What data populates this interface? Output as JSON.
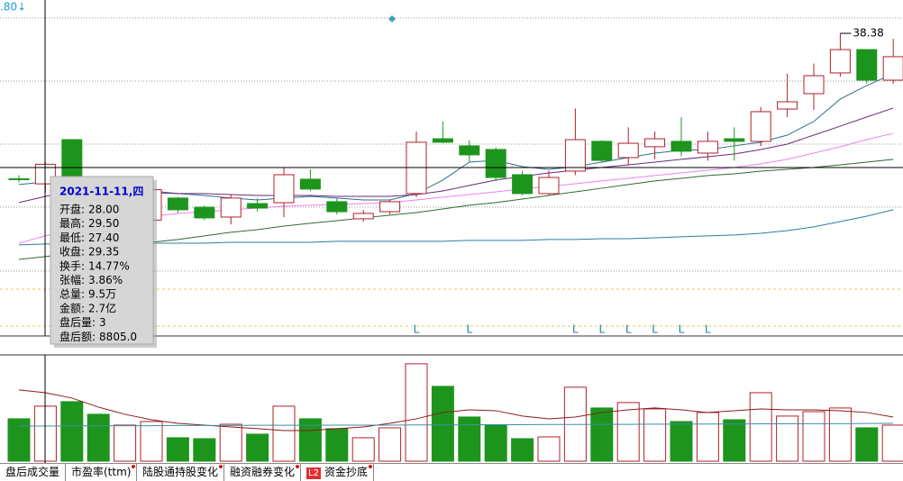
{
  "corner_label": ".80↓",
  "chart_data": [
    {
      "type": "candlestick",
      "categories": [
        null,
        null,
        null,
        null,
        null,
        null,
        null,
        null,
        null,
        null,
        null,
        null,
        null,
        null,
        null,
        null,
        null,
        null,
        null,
        null,
        null,
        null,
        null,
        null,
        null,
        null,
        null,
        null,
        null,
        null,
        null,
        null,
        null,
        null
      ],
      "open": [
        28.35,
        28.0,
        31.05,
        28.3,
        27.2,
        25.5,
        27.02,
        26.39,
        25.71,
        26.64,
        26.7,
        28.32,
        26.77,
        25.59,
        26.08,
        27.33,
        31.11,
        30.62,
        30.37,
        28.63,
        27.33,
        28.88,
        30.93,
        29.81,
        30.56,
        30.93,
        30.12,
        31.11,
        30.93,
        33.16,
        34.22,
        35.65,
        37.26,
        35.15
      ],
      "high": [
        28.6,
        29.5,
        31.1,
        28.5,
        28.1,
        27.8,
        27.1,
        26.5,
        27.3,
        27.0,
        29.1,
        29.0,
        27.0,
        26.2,
        26.9,
        31.6,
        32.3,
        31.0,
        30.5,
        28.9,
        28.9,
        33.2,
        31.0,
        31.9,
        31.6,
        32.6,
        31.6,
        31.9,
        33.3,
        35.6,
        36.3,
        38.38,
        37.3,
        38.0
      ],
      "low": [
        28.1,
        27.4,
        28.0,
        27.3,
        27.0,
        25.3,
        26.0,
        25.5,
        25.2,
        26.1,
        25.7,
        27.5,
        25.9,
        25.4,
        25.9,
        27.1,
        30.8,
        29.5,
        28.2,
        27.2,
        27.2,
        28.6,
        29.5,
        29.3,
        29.7,
        29.9,
        29.6,
        29.6,
        30.6,
        32.6,
        33.1,
        35.4,
        34.9,
        34.9
      ],
      "close": [
        28.3,
        29.35,
        28.3,
        27.6,
        27.9,
        27.6,
        26.21,
        25.65,
        27.02,
        26.33,
        28.63,
        27.64,
        26.08,
        25.96,
        26.77,
        30.87,
        30.87,
        30.0,
        28.44,
        27.33,
        28.44,
        31.05,
        29.62,
        30.8,
        31.11,
        30.25,
        30.93,
        30.93,
        32.98,
        33.66,
        35.46,
        37.26,
        35.15,
        36.77
      ],
      "up_color": "#b0202a",
      "down_color": "#1d951d",
      "series": [
        {
          "color": "#2c6f8e",
          "values": [
            27.95,
            28.13,
            28.26,
            28.07,
            27.76,
            27.51,
            27.33,
            27.2,
            27.02,
            26.89,
            27.02,
            27.14,
            27.02,
            26.89,
            26.89,
            27.33,
            28.26,
            29.5,
            29.62,
            29.19,
            29.0,
            29.19,
            29.5,
            29.81,
            30.12,
            30.31,
            30.37,
            30.62,
            30.87,
            31.36,
            32.3,
            33.85,
            34.78,
            35.59
          ]
        },
        {
          "color": "#6a2a78",
          "values": [
            26.71,
            27.14,
            27.45,
            27.51,
            27.45,
            27.39,
            27.33,
            27.33,
            27.26,
            27.2,
            27.2,
            27.2,
            27.14,
            27.14,
            27.14,
            27.26,
            27.51,
            27.89,
            28.26,
            28.51,
            28.75,
            28.94,
            29.13,
            29.31,
            29.5,
            29.69,
            29.87,
            30.06,
            30.37,
            30.74,
            31.36,
            31.98,
            32.61,
            33.23
          ]
        },
        {
          "color": "#ee82ee",
          "values": [
            23.91,
            24.41,
            24.84,
            25.28,
            25.59,
            25.77,
            25.96,
            26.08,
            26.21,
            26.33,
            26.46,
            26.52,
            26.58,
            26.64,
            26.71,
            26.89,
            27.08,
            27.26,
            27.45,
            27.64,
            27.82,
            28.01,
            28.2,
            28.38,
            28.57,
            28.75,
            28.94,
            29.13,
            29.38,
            29.69,
            30.12,
            30.56,
            31.05,
            31.49
          ]
        },
        {
          "color": "#2f6a2f",
          "values": [
            22.79,
            22.98,
            23.23,
            23.48,
            23.72,
            23.97,
            24.16,
            24.41,
            24.66,
            24.84,
            25.09,
            25.28,
            25.46,
            25.65,
            25.84,
            26.02,
            26.27,
            26.52,
            26.71,
            26.95,
            27.2,
            27.45,
            27.7,
            27.95,
            28.2,
            28.38,
            28.57,
            28.69,
            28.88,
            29.0,
            29.13,
            29.31,
            29.5,
            29.69
          ]
        },
        {
          "color": "#2a7fa0",
          "values": [
            23.79,
            23.85,
            23.85,
            23.91,
            23.91,
            23.91,
            23.91,
            23.91,
            23.97,
            23.97,
            23.97,
            23.97,
            24.04,
            24.04,
            24.04,
            24.04,
            24.04,
            24.1,
            24.1,
            24.1,
            24.16,
            24.16,
            24.22,
            24.22,
            24.28,
            24.35,
            24.41,
            24.47,
            24.59,
            24.78,
            25.03,
            25.4,
            25.77,
            26.21
          ]
        }
      ],
      "l_markers": [
        null,
        null,
        null,
        null,
        null,
        null,
        null,
        null,
        null,
        null,
        null,
        null,
        null,
        null,
        null,
        "L",
        null,
        "L",
        null,
        null,
        null,
        "L",
        "L",
        "L",
        "L",
        "L",
        "L",
        null,
        null,
        null,
        null,
        null,
        null,
        null
      ],
      "annotation": "38.38",
      "ylim": [
        17.57,
        40.68
      ]
    },
    {
      "type": "bar",
      "values": [
        7.32,
        9.5,
        10.28,
        8.1,
        6.23,
        6.85,
        4.05,
        3.89,
        6.38,
        4.67,
        9.5,
        7.32,
        5.61,
        4.05,
        5.76,
        16.82,
        12.92,
        7.63,
        6.23,
        3.89,
        4.2,
        12.77,
        9.19,
        10.12,
        9.03,
        6.85,
        8.41,
        7.16,
        11.83,
        7.79,
        8.56,
        9.19,
        5.76,
        6.23
      ],
      "series": [
        {
          "color": "#8b1a1a",
          "values": [
            12.3,
            11.83,
            10.9,
            9.34,
            8.1,
            7.16,
            6.54,
            6.23,
            5.92,
            5.61,
            5.29,
            5.29,
            5.61,
            5.92,
            6.54,
            7.32,
            8.41,
            8.87,
            8.72,
            7.79,
            7.32,
            7.63,
            8.41,
            8.87,
            9.19,
            8.87,
            8.41,
            8.72,
            9.03,
            8.87,
            8.87,
            8.72,
            8.41,
            7.63
          ]
        },
        {
          "color": "#3a8fa8",
          "values": [
            6.07,
            6.07,
            6.1,
            6.1,
            6.13,
            6.13,
            6.16,
            6.16,
            6.16,
            6.2,
            6.2,
            6.2,
            6.23,
            6.23,
            6.23,
            6.26,
            6.26,
            6.3,
            6.3,
            6.3,
            6.33,
            6.33,
            6.36,
            6.36,
            6.39,
            6.39,
            6.42,
            6.42,
            6.45,
            6.45,
            6.48,
            6.48,
            6.51,
            6.54
          ]
        }
      ],
      "ylim": [
        0,
        18.2
      ]
    }
  ],
  "tooltip": {
    "title": "2021-11-11,四",
    "rows": [
      [
        "开盘:",
        "28.00"
      ],
      [
        "最高:",
        "29.50"
      ],
      [
        "最低:",
        "27.40"
      ],
      [
        "收盘:",
        "29.35"
      ],
      [
        "换手:",
        "14.77%"
      ],
      [
        "张幅:",
        "3.86%"
      ],
      [
        "总量:",
        "9.5万"
      ],
      [
        "金额:",
        "2.7亿"
      ],
      [
        "盘后量:",
        "3"
      ],
      [
        "盘后额:",
        "8805.0"
      ]
    ]
  },
  "tabs": [
    "盘后成交量",
    "市盈率(ttm)",
    "陆股通持股变化",
    "融资融券变化",
    "资金抄底"
  ],
  "badge": "L2"
}
